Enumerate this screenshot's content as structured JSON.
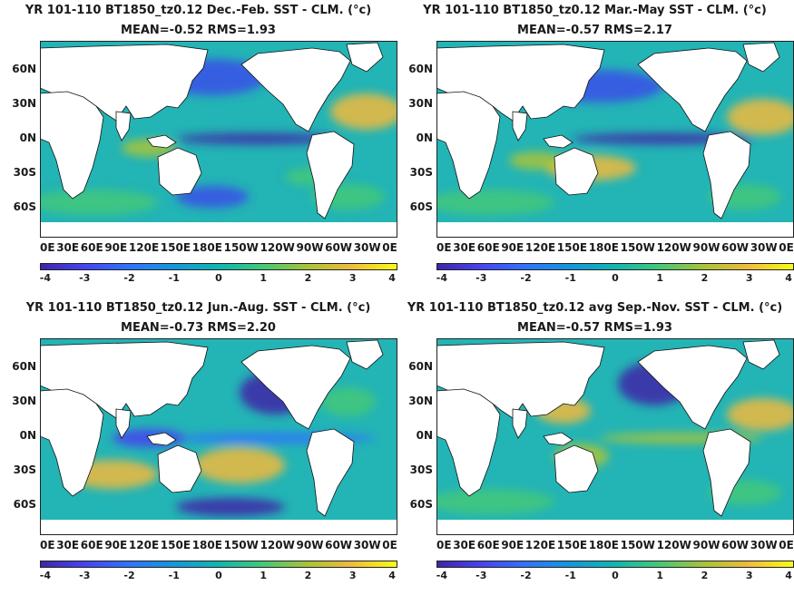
{
  "chart_data": [
    {
      "type": "heatmap",
      "title": "YR 101-110 BT1850_tz0.12  Dec.-Feb. SST - CLM. (°c)",
      "stats": "MEAN=-0.52   RMS=1.93",
      "mean": -0.52,
      "rms": 1.93,
      "xticks": [
        "0E",
        "30E",
        "60E",
        "90E",
        "120E",
        "150E",
        "180E",
        "150W",
        "120W",
        "90W",
        "60W",
        "30W",
        "0E"
      ],
      "yticks": [
        "60N",
        "30N",
        "0N",
        "30S",
        "60S"
      ],
      "colorbar": {
        "min": -4,
        "max": 4,
        "ticks": [
          "-4",
          "-3",
          "-2",
          "-1",
          "0",
          "1",
          "2",
          "3",
          "4"
        ]
      }
    },
    {
      "type": "heatmap",
      "title": "YR 101-110 BT1850_tz0.12 Mar.-May SST - CLM. (°c)",
      "stats": "MEAN=-0.57   RMS=2.17",
      "mean": -0.57,
      "rms": 2.17,
      "xticks": [
        "0E",
        "30E",
        "60E",
        "90E",
        "120E",
        "150E",
        "180E",
        "150W",
        "120W",
        "90W",
        "60W",
        "30W",
        "0E"
      ],
      "yticks": [
        "60N",
        "30N",
        "0N",
        "30S",
        "60S"
      ],
      "colorbar": {
        "min": -4,
        "max": 4,
        "ticks": [
          "-4",
          "-3",
          "-2",
          "-1",
          "0",
          "1",
          "2",
          "3",
          "4"
        ]
      }
    },
    {
      "type": "heatmap",
      "title": "YR 101-110 BT1850_tz0.12 Jun.-Aug. SST - CLM. (°c)",
      "stats": "MEAN=-0.73   RMS=2.20",
      "mean": -0.73,
      "rms": 2.2,
      "xticks": [
        "0E",
        "30E",
        "60E",
        "90E",
        "120E",
        "150E",
        "180E",
        "150W",
        "120W",
        "90W",
        "60W",
        "30W",
        "0E"
      ],
      "yticks": [
        "60N",
        "30N",
        "0N",
        "30S",
        "60S"
      ],
      "colorbar": {
        "min": -4,
        "max": 4,
        "ticks": [
          "-4",
          "-3",
          "-2",
          "-1",
          "0",
          "1",
          "2",
          "3",
          "4"
        ]
      }
    },
    {
      "type": "heatmap",
      "title": "YR 101-110 BT1850_tz0.12 avg Sep.-Nov. SST - CLM. (°c)",
      "stats": "MEAN=-0.57   RMS=1.93",
      "mean": -0.57,
      "rms": 1.93,
      "xticks": [
        "0E",
        "30E",
        "60E",
        "90E",
        "120E",
        "150E",
        "180E",
        "150W",
        "120W",
        "90W",
        "60W",
        "30W",
        "0E"
      ],
      "yticks": [
        "60N",
        "30N",
        "0N",
        "30S",
        "60S"
      ],
      "colorbar": {
        "min": -4,
        "max": 4,
        "ticks": [
          "-4",
          "-3",
          "-2",
          "-1",
          "0",
          "1",
          "2",
          "3",
          "4"
        ]
      }
    }
  ]
}
